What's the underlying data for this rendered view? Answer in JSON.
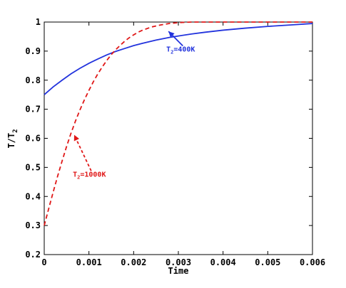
{
  "chart_data": {
    "type": "line",
    "xlabel": "Time",
    "ylabel_main": "T/T",
    "ylabel_sub": "2",
    "xlim": [
      0,
      0.006
    ],
    "ylim": [
      0.2,
      1.0
    ],
    "xticks": [
      0,
      0.001,
      0.002,
      0.003,
      0.004,
      0.005,
      0.006
    ],
    "xtick_labels": [
      "0",
      "0.001",
      "0.002",
      "0.003",
      "0.004",
      "0.005",
      "0.006"
    ],
    "yticks": [
      0.2,
      0.3,
      0.4,
      0.5,
      0.6,
      0.7,
      0.8,
      0.9,
      1.0
    ],
    "ytick_labels": [
      "0.2",
      "0.3",
      "0.4",
      "0.5",
      "0.6",
      "0.7",
      "0.8",
      "0.9",
      "1"
    ],
    "grid": false,
    "series": [
      {
        "color": "#2233dd",
        "style": "solid",
        "x": [
          0,
          0.0002,
          0.0004,
          0.0006,
          0.0008,
          0.001,
          0.0012,
          0.0014,
          0.0016,
          0.0018,
          0.002,
          0.0022,
          0.0025,
          0.0028,
          0.003,
          0.0033,
          0.0036,
          0.004,
          0.0045,
          0.005,
          0.0055,
          0.006
        ],
        "values": [
          0.75,
          0.777,
          0.8,
          0.822,
          0.841,
          0.858,
          0.873,
          0.887,
          0.899,
          0.909,
          0.919,
          0.927,
          0.938,
          0.947,
          0.952,
          0.959,
          0.965,
          0.972,
          0.979,
          0.985,
          0.99,
          0.995
        ]
      },
      {
        "color": "#e01818",
        "style": "dashed",
        "x": [
          0,
          0.0001,
          0.0002,
          0.0003,
          0.0004,
          0.0005,
          0.0006,
          0.0007,
          0.0008,
          0.0009,
          0.001,
          0.0011,
          0.0012,
          0.0013,
          0.0014,
          0.0015,
          0.0016,
          0.0017,
          0.0018,
          0.0019,
          0.002,
          0.0021,
          0.0022,
          0.0024,
          0.0026,
          0.0028,
          0.003,
          0.0033,
          0.0036,
          0.004,
          0.005,
          0.006
        ],
        "values": [
          0.3,
          0.358,
          0.415,
          0.47,
          0.522,
          0.572,
          0.618,
          0.66,
          0.698,
          0.733,
          0.765,
          0.795,
          0.822,
          0.846,
          0.868,
          0.888,
          0.905,
          0.92,
          0.934,
          0.946,
          0.956,
          0.965,
          0.972,
          0.983,
          0.99,
          0.995,
          0.998,
          1.0,
          1.0,
          1.0,
          1.0,
          1.0
        ]
      }
    ],
    "annotations": [
      {
        "main": "T",
        "sub": "2",
        "value": "=400K",
        "color": "#2233dd",
        "arrow_from": [
          0.0031,
          0.918
        ],
        "arrow_to": [
          0.00278,
          0.968
        ],
        "text_at": [
          0.00273,
          0.899
        ]
      },
      {
        "main": "T",
        "sub": "2",
        "value": "=1000K",
        "color": "#e01818",
        "arrow_from": [
          0.00105,
          0.488
        ],
        "arrow_to": [
          0.00067,
          0.612
        ],
        "text_at": [
          0.00064,
          0.468
        ]
      }
    ]
  }
}
